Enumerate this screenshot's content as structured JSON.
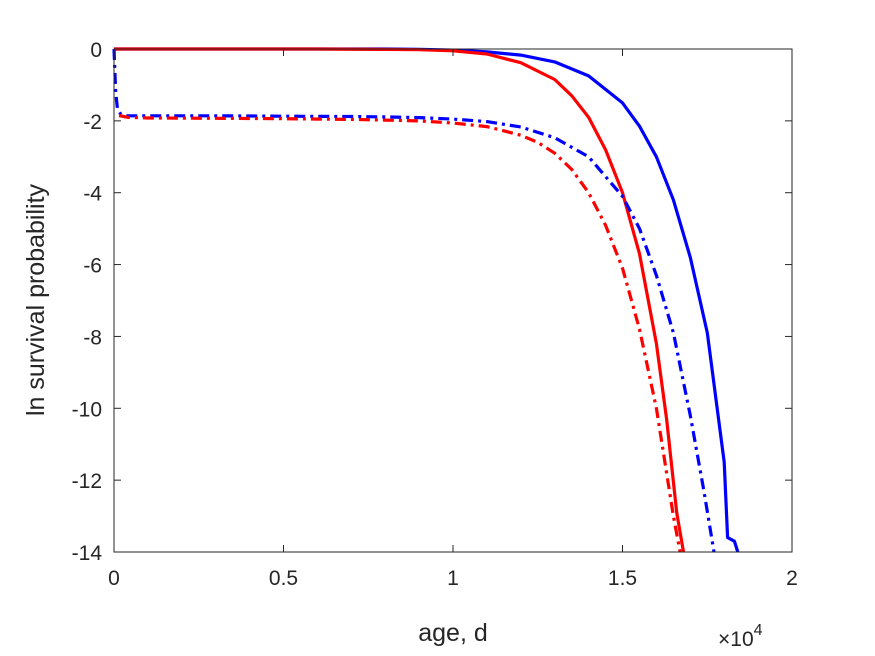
{
  "chart_data": {
    "type": "line",
    "title": "",
    "xlabel": "age, d",
    "ylabel": "ln survival probability",
    "x_multiplier_label": "×10",
    "x_multiplier_exponent": "4",
    "xlim": [
      0,
      20000
    ],
    "ylim": [
      -14,
      0
    ],
    "xticks": [
      0,
      5000,
      10000,
      15000,
      20000
    ],
    "xtick_labels": [
      "0",
      "0.5",
      "1",
      "1.5",
      "2"
    ],
    "yticks": [
      0,
      -2,
      -4,
      -6,
      -8,
      -10,
      -12,
      -14
    ],
    "ytick_labels": [
      "0",
      "-2",
      "-4",
      "-6",
      "-8",
      "-10",
      "-12",
      "-14"
    ],
    "grid": false,
    "box": true,
    "series": [
      {
        "color": "#0000ff",
        "style": "solid",
        "x": [
          0,
          2000,
          4000,
          6000,
          8000,
          9000,
          10000,
          11000,
          12000,
          13000,
          14000,
          15000,
          15500,
          16000,
          16500,
          17000,
          17500,
          18000,
          18100,
          18300,
          18400
        ],
        "y": [
          0,
          0,
          0,
          0,
          0,
          -0.01,
          -0.03,
          -0.08,
          -0.17,
          -0.36,
          -0.75,
          -1.5,
          -2.15,
          -3.0,
          -4.2,
          -5.8,
          -7.9,
          -11.5,
          -13.6,
          -13.7,
          -14.0
        ]
      },
      {
        "color": "#ff0000",
        "style": "solid",
        "x": [
          0,
          2000,
          4000,
          6000,
          8000,
          9000,
          10000,
          11000,
          12000,
          13000,
          13500,
          14000,
          14500,
          15000,
          15500,
          16000,
          16300,
          16600,
          16800
        ],
        "y": [
          0,
          0,
          0,
          0,
          -0.01,
          -0.02,
          -0.05,
          -0.14,
          -0.38,
          -0.85,
          -1.3,
          -1.9,
          -2.8,
          -4.0,
          -5.7,
          -8.2,
          -10.3,
          -12.9,
          -14.0
        ]
      },
      {
        "color": "#0000ff",
        "style": "dashdot",
        "x": [
          0,
          50,
          100,
          200,
          400,
          1000,
          3000,
          5000,
          7000,
          8000,
          9000,
          10000,
          11000,
          12000,
          13000,
          14000,
          15000,
          15500,
          16000,
          16500,
          17000,
          17400,
          17700
        ],
        "y": [
          0,
          -1.2,
          -1.65,
          -1.82,
          -1.86,
          -1.86,
          -1.86,
          -1.87,
          -1.88,
          -1.89,
          -1.91,
          -1.95,
          -2.02,
          -2.17,
          -2.47,
          -3.0,
          -4.1,
          -5.0,
          -6.3,
          -7.9,
          -10.2,
          -12.3,
          -14.0
        ]
      },
      {
        "color": "#ff0000",
        "style": "dashdot",
        "x": [
          150,
          400,
          1000,
          3000,
          5000,
          7000,
          8000,
          9000,
          10000,
          11000,
          12000,
          12500,
          13000,
          13500,
          14000,
          14500,
          15000,
          15500,
          16000,
          16300,
          16500,
          16700
        ],
        "y": [
          -1.85,
          -1.9,
          -1.92,
          -1.93,
          -1.94,
          -1.96,
          -1.98,
          -2.0,
          -2.06,
          -2.16,
          -2.4,
          -2.6,
          -2.9,
          -3.35,
          -4.0,
          -4.9,
          -6.1,
          -7.8,
          -10.0,
          -11.8,
          -13.0,
          -14.0
        ]
      }
    ]
  }
}
